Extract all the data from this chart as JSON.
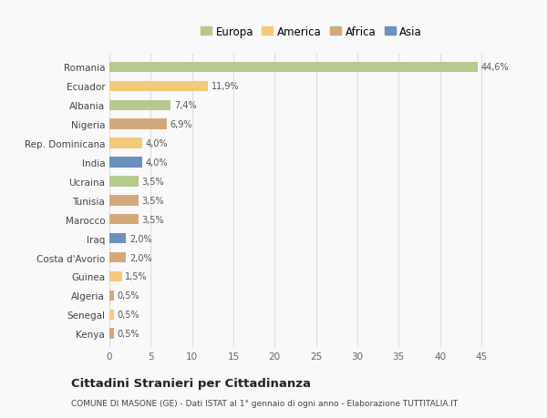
{
  "categories": [
    "Romania",
    "Ecuador",
    "Albania",
    "Nigeria",
    "Rep. Dominicana",
    "India",
    "Ucraina",
    "Tunisia",
    "Marocco",
    "Iraq",
    "Costa d'Avorio",
    "Guinea",
    "Algeria",
    "Senegal",
    "Kenya"
  ],
  "values": [
    44.6,
    11.9,
    7.4,
    6.9,
    4.0,
    4.0,
    3.5,
    3.5,
    3.5,
    2.0,
    2.0,
    1.5,
    0.5,
    0.5,
    0.5
  ],
  "labels": [
    "44,6%",
    "11,9%",
    "7,4%",
    "6,9%",
    "4,0%",
    "4,0%",
    "3,5%",
    "3,5%",
    "3,5%",
    "2,0%",
    "2,0%",
    "1,5%",
    "0,5%",
    "0,5%",
    "0,5%"
  ],
  "colors": [
    "#b5c98e",
    "#f5c97a",
    "#b5c98e",
    "#d4a87a",
    "#f5c97a",
    "#6b8fbf",
    "#b5c98e",
    "#d4a87a",
    "#d4a87a",
    "#6b8fbf",
    "#d4a87a",
    "#f5c97a",
    "#d4a87a",
    "#f5c97a",
    "#d4a87a"
  ],
  "legend_labels": [
    "Europa",
    "America",
    "Africa",
    "Asia"
  ],
  "legend_colors": [
    "#b5c98e",
    "#f5c97a",
    "#d4a87a",
    "#6b8fbf"
  ],
  "title": "Cittadini Stranieri per Cittadinanza",
  "subtitle": "COMUNE DI MASONE (GE) - Dati ISTAT al 1° gennaio di ogni anno - Elaborazione TUTTITALIA.IT",
  "xlim": [
    0,
    47
  ],
  "xticks": [
    0,
    5,
    10,
    15,
    20,
    25,
    30,
    35,
    40,
    45
  ],
  "background_color": "#f9f9f9",
  "grid_color": "#dddddd",
  "bar_height": 0.55
}
